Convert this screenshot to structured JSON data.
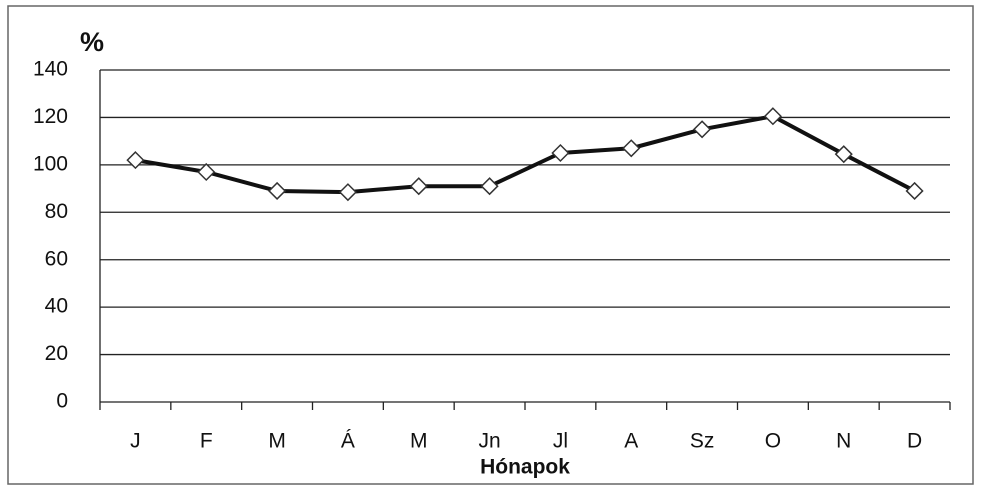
{
  "chart_data": {
    "type": "line",
    "y_label": "%",
    "x_label": "Hónapok",
    "categories": [
      "J",
      "F",
      "M",
      "Á",
      "M",
      "Jn",
      "Jl",
      "A",
      "Sz",
      "O",
      "N",
      "D"
    ],
    "values": [
      102,
      97,
      89,
      88.5,
      91,
      91,
      105,
      107,
      115,
      120.5,
      104.5,
      89
    ],
    "color": "#111111",
    "ylim": [
      0,
      140
    ],
    "yticks": [
      0,
      20,
      40,
      60,
      80,
      100,
      120,
      140
    ],
    "grid": true
  }
}
